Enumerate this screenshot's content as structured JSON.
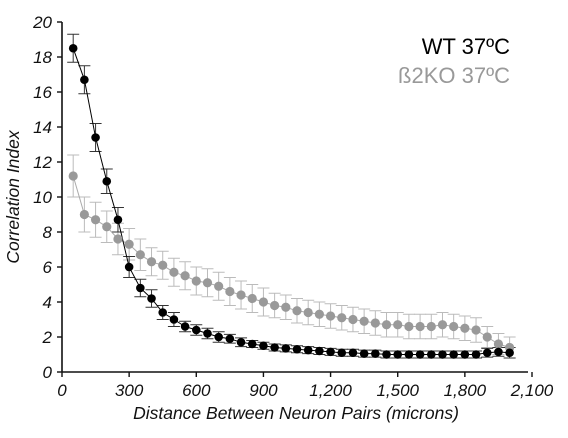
{
  "chart_data": {
    "type": "scatter",
    "title": "",
    "xlabel": "Distance Between Neuron Pairs (microns)",
    "ylabel": "Correlation Index",
    "xlim": [
      0,
      2100
    ],
    "ylim": [
      0,
      20
    ],
    "x_ticks": [
      0,
      300,
      600,
      900,
      1200,
      1500,
      1800,
      2100
    ],
    "x_tick_labels": [
      "0",
      "300",
      "600",
      "900",
      "1,200",
      "1,500",
      "1,800",
      "2,100"
    ],
    "y_ticks": [
      0,
      2,
      4,
      6,
      8,
      10,
      12,
      14,
      16,
      18,
      20
    ],
    "y_tick_labels": [
      "0",
      "2",
      "4",
      "6",
      "8",
      "10",
      "12",
      "14",
      "16",
      "18",
      "20"
    ],
    "grid": false,
    "legend_position": "top-right",
    "error_bars": true,
    "series": [
      {
        "name": "WT 37ºC",
        "color": "#000000",
        "x": [
          50,
          100,
          150,
          200,
          250,
          300,
          350,
          400,
          450,
          500,
          550,
          600,
          650,
          700,
          750,
          800,
          850,
          900,
          950,
          1000,
          1050,
          1100,
          1150,
          1200,
          1250,
          1300,
          1350,
          1400,
          1450,
          1500,
          1550,
          1600,
          1650,
          1700,
          1750,
          1800,
          1850,
          1900,
          1950,
          2000
        ],
        "y": [
          18.5,
          16.7,
          13.4,
          10.9,
          8.7,
          6.0,
          4.8,
          4.2,
          3.4,
          3.0,
          2.6,
          2.4,
          2.2,
          2.0,
          1.9,
          1.7,
          1.6,
          1.5,
          1.4,
          1.35,
          1.3,
          1.25,
          1.2,
          1.15,
          1.1,
          1.1,
          1.05,
          1.05,
          1.0,
          1.0,
          1.0,
          1.0,
          1.0,
          1.0,
          1.0,
          1.0,
          1.0,
          1.1,
          1.15,
          1.1
        ],
        "error": [
          0.8,
          0.8,
          0.8,
          0.7,
          0.7,
          0.6,
          0.5,
          0.5,
          0.4,
          0.4,
          0.3,
          0.3,
          0.3,
          0.3,
          0.25,
          0.25,
          0.2,
          0.2,
          0.2,
          0.2,
          0.2,
          0.2,
          0.2,
          0.2,
          0.2,
          0.2,
          0.2,
          0.2,
          0.2,
          0.2,
          0.2,
          0.2,
          0.2,
          0.2,
          0.2,
          0.2,
          0.2,
          0.25,
          0.25,
          0.3
        ]
      },
      {
        "name": "ß2KO 37ºC",
        "color": "#999999",
        "x": [
          50,
          100,
          150,
          200,
          250,
          300,
          350,
          400,
          450,
          500,
          550,
          600,
          650,
          700,
          750,
          800,
          850,
          900,
          950,
          1000,
          1050,
          1100,
          1150,
          1200,
          1250,
          1300,
          1350,
          1400,
          1450,
          1500,
          1550,
          1600,
          1650,
          1700,
          1750,
          1800,
          1850,
          1900,
          1950,
          2000
        ],
        "y": [
          11.2,
          9.0,
          8.7,
          8.3,
          7.6,
          7.3,
          6.7,
          6.3,
          6.1,
          5.7,
          5.5,
          5.2,
          5.1,
          4.9,
          4.6,
          4.4,
          4.2,
          4.0,
          3.8,
          3.7,
          3.5,
          3.4,
          3.3,
          3.2,
          3.1,
          3.0,
          2.9,
          2.8,
          2.7,
          2.7,
          2.6,
          2.6,
          2.6,
          2.7,
          2.6,
          2.5,
          2.4,
          2.0,
          1.6,
          1.4
        ],
        "error": [
          1.2,
          1.0,
          1.0,
          0.9,
          0.9,
          0.9,
          0.9,
          0.8,
          0.8,
          0.8,
          0.8,
          0.8,
          0.8,
          0.8,
          0.8,
          0.8,
          0.8,
          0.8,
          0.7,
          0.7,
          0.7,
          0.7,
          0.7,
          0.7,
          0.7,
          0.7,
          0.7,
          0.7,
          0.7,
          0.7,
          0.7,
          0.7,
          0.7,
          0.7,
          0.7,
          0.7,
          0.7,
          0.6,
          0.6,
          0.6
        ]
      }
    ]
  }
}
